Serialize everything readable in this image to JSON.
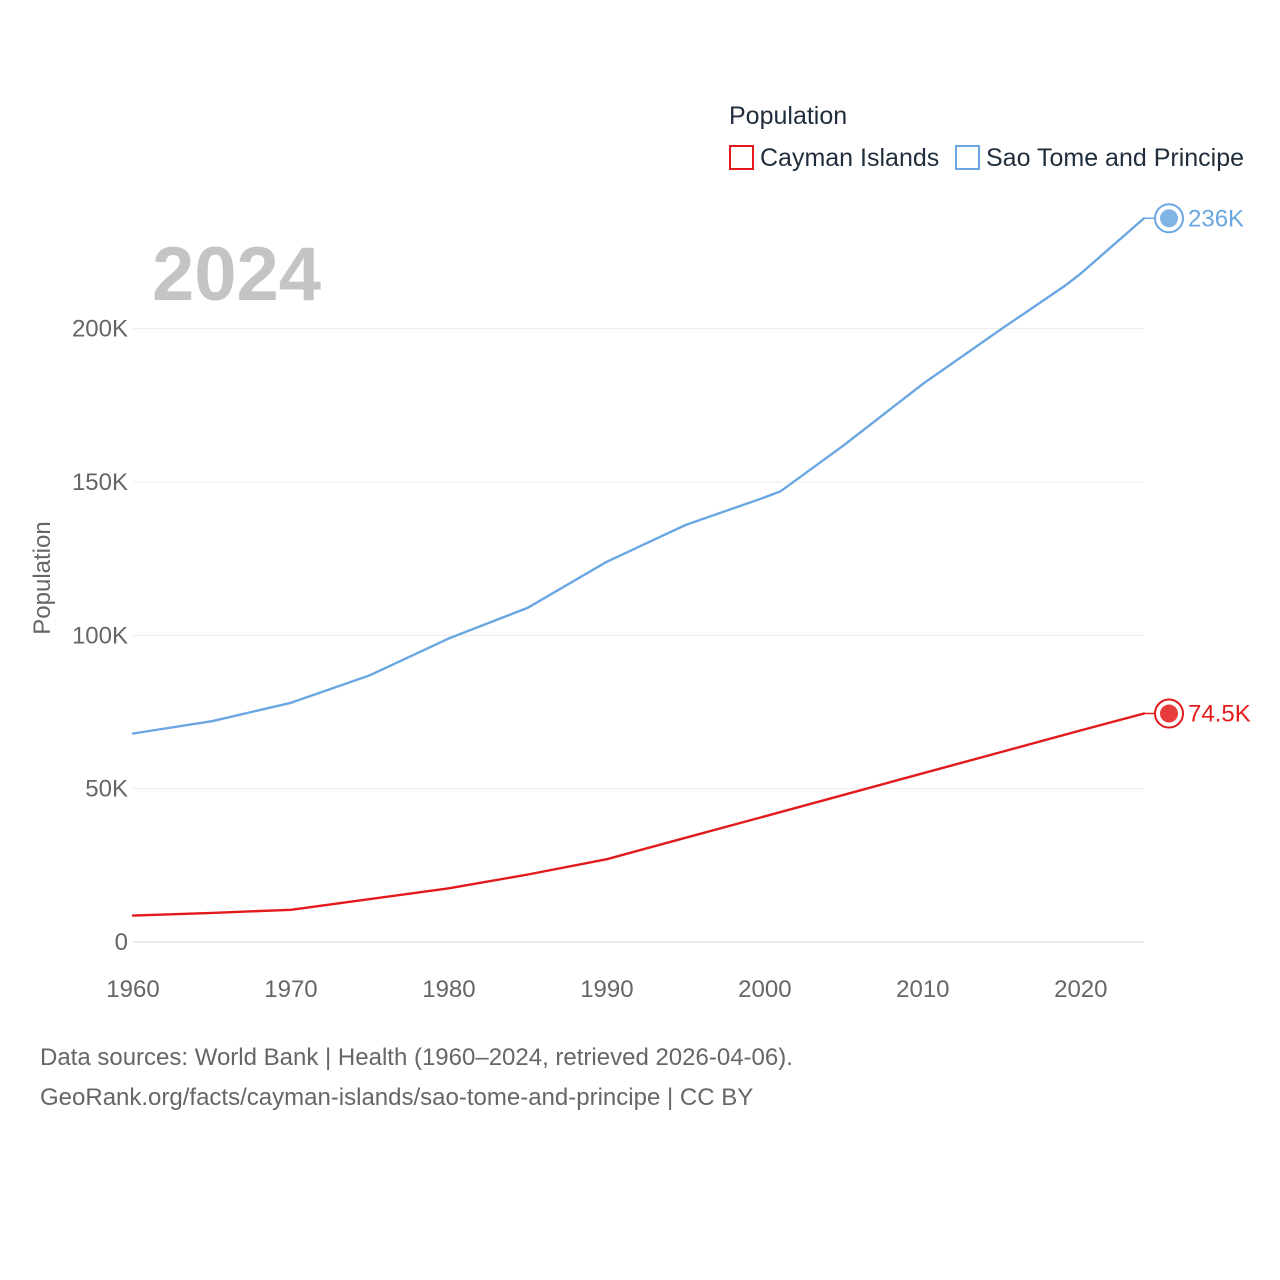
{
  "legend": {
    "title": "Population",
    "items": [
      {
        "label": "Cayman Islands",
        "color": "#e31a1c"
      },
      {
        "label": "Sao Tome and Principe",
        "color": "#6aa7e2"
      }
    ]
  },
  "year_watermark": "2024",
  "footer": {
    "line1": "Data sources: World Bank | Health (1960–2024, retrieved 2026-04-06).",
    "line2": "GeoRank.org/facts/cayman-islands/sao-tome-and-principe | CC BY"
  },
  "chart_data": {
    "type": "line",
    "title": "Population",
    "xlabel": "",
    "ylabel": "Population",
    "xlim": [
      1960,
      2024
    ],
    "ylim": [
      0,
      240000
    ],
    "x_ticks": [
      1960,
      1970,
      1980,
      1990,
      2000,
      2010,
      2020
    ],
    "x_tick_labels": [
      "1960",
      "1970",
      "1980",
      "1990",
      "2000",
      "2010",
      "2020"
    ],
    "y_ticks": [
      0,
      50000,
      100000,
      150000,
      200000
    ],
    "y_tick_labels": [
      "0",
      "50K",
      "100K",
      "150K",
      "200K"
    ],
    "grid": true,
    "series": [
      {
        "name": "Cayman Islands",
        "color": "#e31a1c",
        "end_label": "74.5K",
        "x": [
          1960,
          1965,
          1970,
          1975,
          1980,
          1985,
          1990,
          1995,
          2000,
          2005,
          2010,
          2015,
          2020,
          2024
        ],
        "y": [
          8600,
          9500,
          10500,
          14000,
          17500,
          22000,
          27000,
          34000,
          41000,
          48000,
          55000,
          62000,
          69000,
          74500
        ]
      },
      {
        "name": "Sao Tome and Principe",
        "color": "#6aa7e2",
        "end_label": "236K",
        "x": [
          1960,
          1965,
          1970,
          1975,
          1980,
          1985,
          1990,
          1995,
          2000,
          2001,
          2005,
          2010,
          2015,
          2019,
          2020,
          2024
        ],
        "y": [
          68000,
          72000,
          78000,
          87000,
          99000,
          109000,
          124000,
          136000,
          145000,
          147000,
          162000,
          182000,
          200000,
          214000,
          218000,
          236000
        ]
      }
    ]
  }
}
